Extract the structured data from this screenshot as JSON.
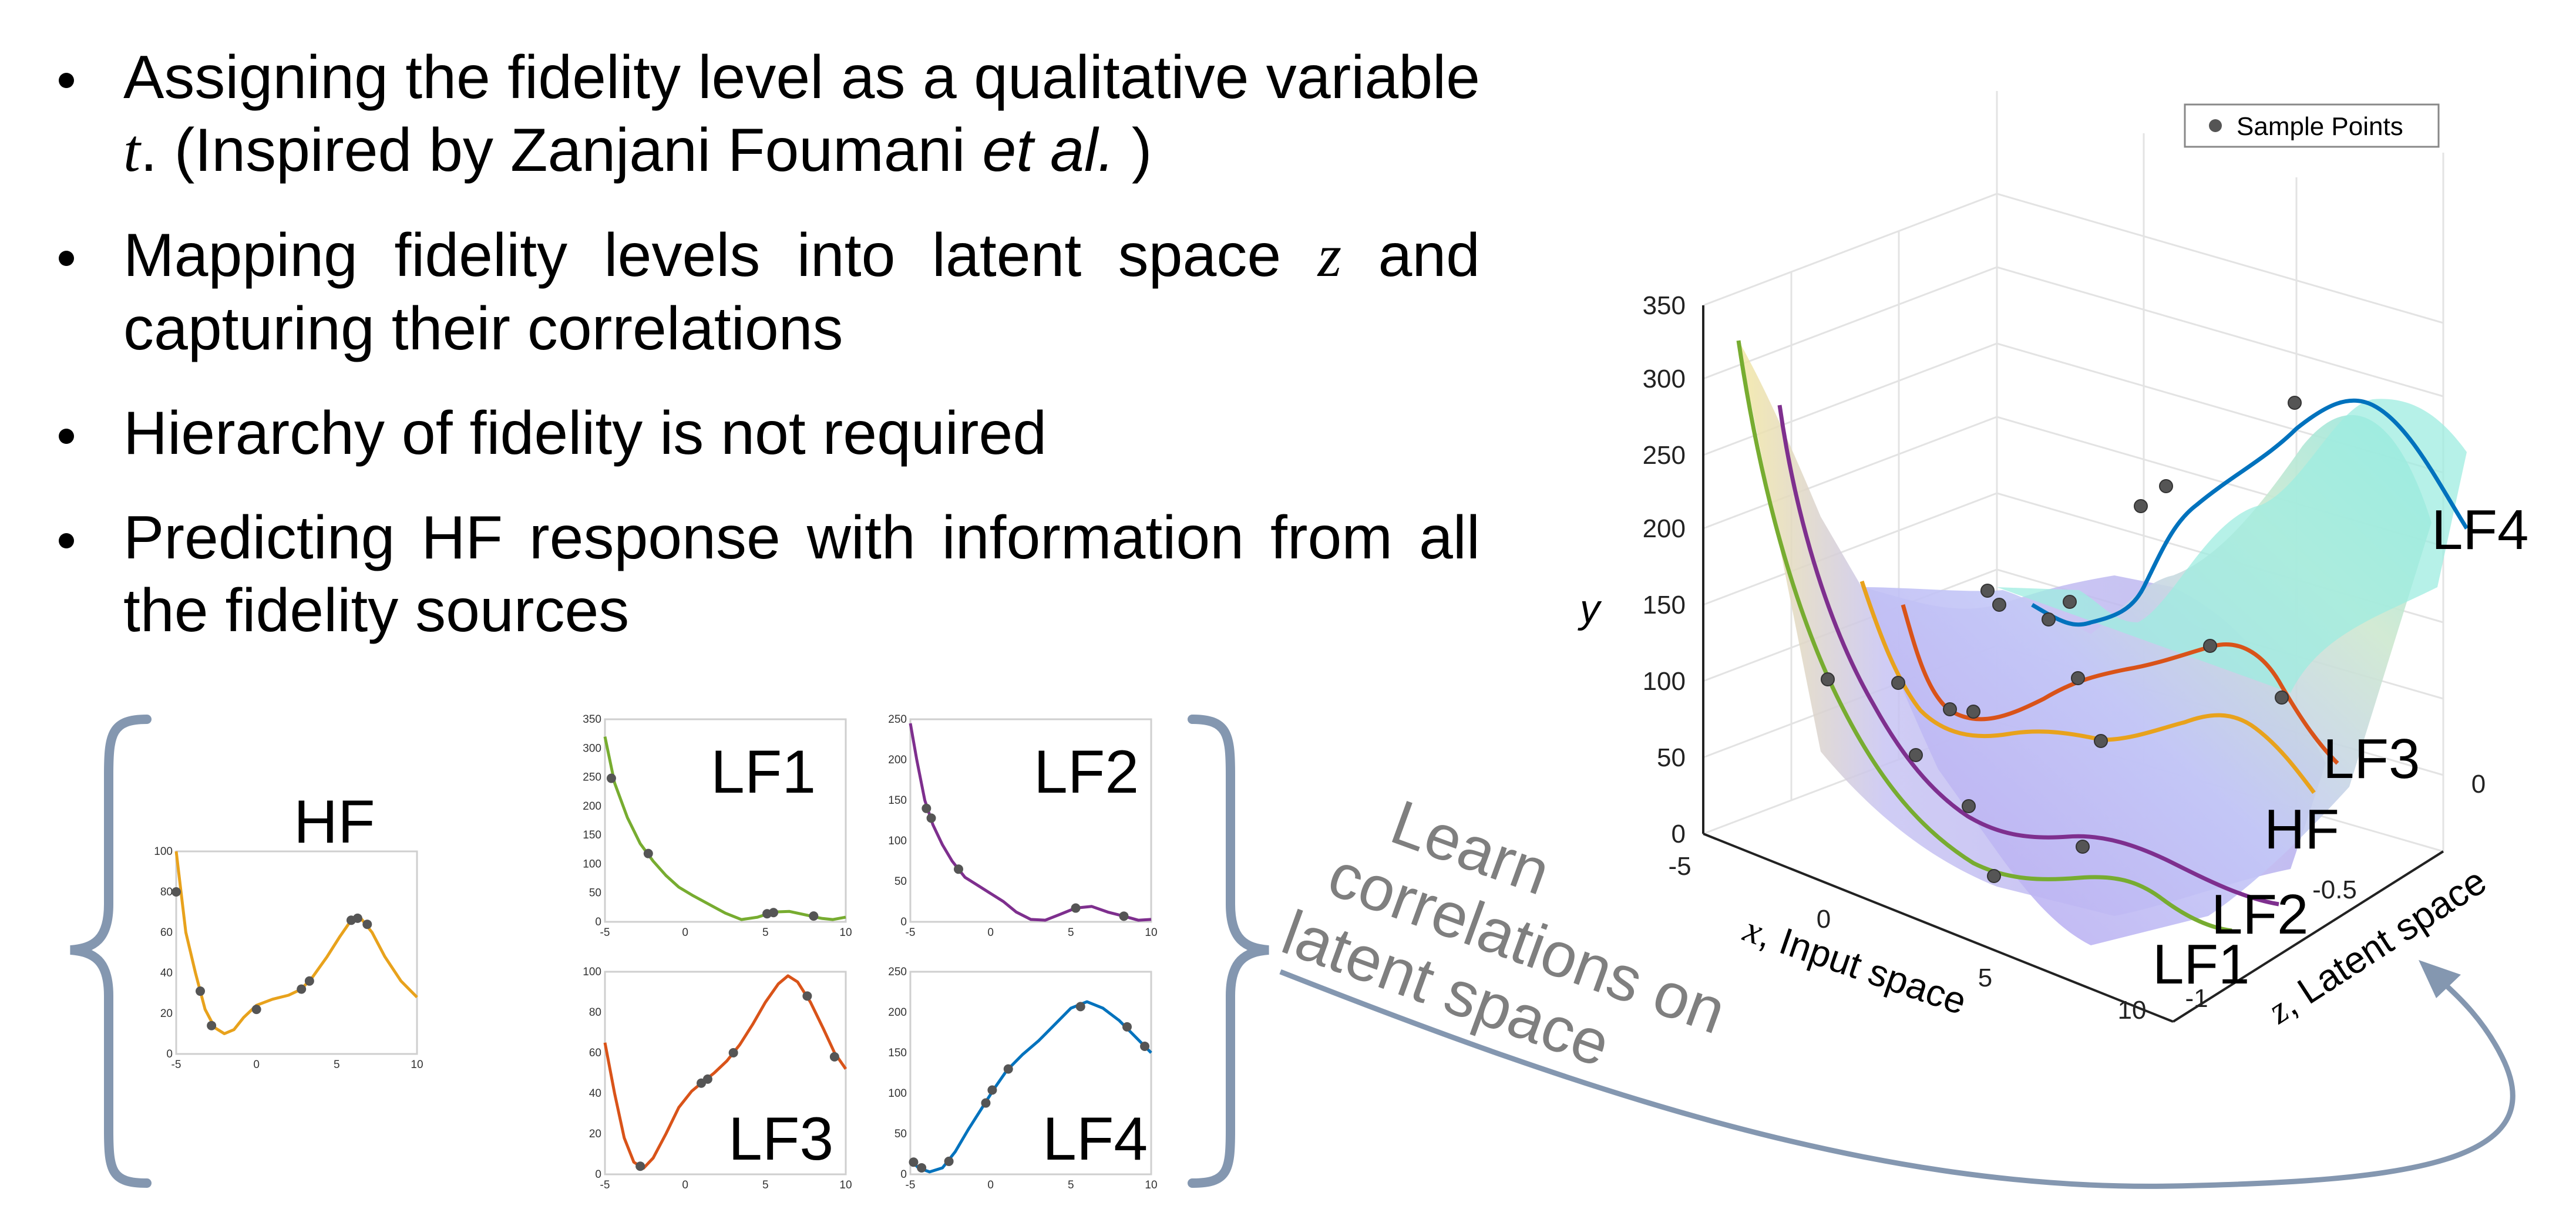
{
  "bullets": [
    {
      "text_before": "Assigning the fidelity level as a qualitative variable ",
      "math": "t",
      "text_after": ". (Inspired by Zanjani Foumani ",
      "italic": "et al.",
      "tail": " )"
    },
    {
      "text_before": "Mapping fidelity levels into latent space ",
      "math": "z",
      "text_after": " and capturing their correlations"
    },
    {
      "text_before": "Hierarchy of fidelity is not required"
    },
    {
      "text_before": "Predicting HF response with information from all the fidelity sources"
    }
  ],
  "arrow_text": [
    "Learn",
    "correlations on",
    "latent space"
  ],
  "colors": {
    "HF": "#e8a21c",
    "LF1": "#77ac30",
    "LF2": "#7e2f8e",
    "LF3": "#d95319",
    "LF4": "#0072bd",
    "points": "#555555",
    "brace": "#8497b0",
    "arrow_text": "#7f7f7f"
  },
  "chart_data": [
    {
      "type": "line",
      "title": "HF",
      "xlim": [
        -5,
        10
      ],
      "ylim": [
        0,
        100
      ],
      "xticks": [
        -5,
        0,
        5,
        10
      ],
      "yticks": [
        0,
        20,
        40,
        60,
        80,
        100
      ],
      "points": [
        [
          -5,
          80
        ],
        [
          -3.5,
          31
        ],
        [
          -2.8,
          14
        ],
        [
          0,
          22
        ],
        [
          2.8,
          32
        ],
        [
          3.3,
          36
        ],
        [
          5.9,
          66
        ],
        [
          6.3,
          67
        ],
        [
          6.9,
          64
        ]
      ],
      "curve": [
        [
          -5,
          100
        ],
        [
          -4.4,
          60
        ],
        [
          -3.8,
          40
        ],
        [
          -3.2,
          22
        ],
        [
          -2.6,
          13
        ],
        [
          -2,
          10
        ],
        [
          -1.4,
          12
        ],
        [
          -0.8,
          18
        ],
        [
          0,
          24
        ],
        [
          1,
          27
        ],
        [
          2,
          29
        ],
        [
          2.8,
          32
        ],
        [
          3.5,
          38
        ],
        [
          4.4,
          48
        ],
        [
          5.2,
          58
        ],
        [
          5.9,
          66
        ],
        [
          6.5,
          67
        ],
        [
          7.2,
          60
        ],
        [
          8,
          48
        ],
        [
          9,
          36
        ],
        [
          10,
          28
        ]
      ]
    },
    {
      "type": "line",
      "title": "LF1",
      "xlim": [
        -5,
        10
      ],
      "ylim": [
        0,
        350
      ],
      "xticks": [
        -5,
        0,
        5,
        10
      ],
      "yticks": [
        0,
        50,
        100,
        150,
        200,
        250,
        300,
        350
      ],
      "points": [
        [
          -4.6,
          248
        ],
        [
          -2.3,
          118
        ],
        [
          5.1,
          14
        ],
        [
          5.5,
          16
        ],
        [
          8,
          10
        ]
      ],
      "curve": [
        [
          -5,
          320
        ],
        [
          -4.4,
          240
        ],
        [
          -3.6,
          180
        ],
        [
          -2.8,
          135
        ],
        [
          -2,
          105
        ],
        [
          -1.2,
          80
        ],
        [
          -0.4,
          60
        ],
        [
          0.5,
          45
        ],
        [
          1.5,
          30
        ],
        [
          2.5,
          15
        ],
        [
          3.5,
          4
        ],
        [
          4.5,
          8
        ],
        [
          5.5,
          17
        ],
        [
          6.5,
          18
        ],
        [
          7.5,
          12
        ],
        [
          8.5,
          6
        ],
        [
          9.2,
          4
        ],
        [
          10,
          8
        ]
      ]
    },
    {
      "type": "line",
      "title": "LF2",
      "xlim": [
        -5,
        10
      ],
      "ylim": [
        0,
        250
      ],
      "xticks": [
        -5,
        0,
        5,
        10
      ],
      "yticks": [
        0,
        50,
        100,
        150,
        200,
        250
      ],
      "points": [
        [
          -4,
          140
        ],
        [
          -3.7,
          128
        ],
        [
          -2,
          65
        ],
        [
          5.3,
          17
        ],
        [
          8.3,
          7
        ]
      ],
      "curve": [
        [
          -5,
          245
        ],
        [
          -4.6,
          200
        ],
        [
          -4.1,
          150
        ],
        [
          -3.6,
          120
        ],
        [
          -3,
          95
        ],
        [
          -2.4,
          75
        ],
        [
          -1.6,
          55
        ],
        [
          -0.8,
          45
        ],
        [
          0,
          35
        ],
        [
          0.8,
          25
        ],
        [
          1.6,
          12
        ],
        [
          2.5,
          3
        ],
        [
          3.4,
          2
        ],
        [
          4.3,
          9
        ],
        [
          5.3,
          17
        ],
        [
          6.3,
          19
        ],
        [
          7.3,
          12
        ],
        [
          8.3,
          7
        ],
        [
          9.2,
          2
        ],
        [
          10,
          3
        ]
      ]
    },
    {
      "type": "line",
      "title": "LF3",
      "xlim": [
        -5,
        10
      ],
      "ylim": [
        0,
        100
      ],
      "xticks": [
        -5,
        0,
        5,
        10
      ],
      "yticks": [
        0,
        20,
        40,
        60,
        80,
        100
      ],
      "points": [
        [
          -2.8,
          4
        ],
        [
          1,
          45
        ],
        [
          1.4,
          47
        ],
        [
          3,
          60
        ],
        [
          7.6,
          88
        ],
        [
          9.3,
          58
        ]
      ],
      "curve": [
        [
          -5,
          65
        ],
        [
          -4.4,
          40
        ],
        [
          -3.8,
          18
        ],
        [
          -3.2,
          6
        ],
        [
          -2.6,
          3
        ],
        [
          -2,
          8
        ],
        [
          -1.2,
          20
        ],
        [
          -0.4,
          33
        ],
        [
          0.4,
          41
        ],
        [
          1,
          45
        ],
        [
          1.8,
          50
        ],
        [
          2.6,
          56
        ],
        [
          3.4,
          64
        ],
        [
          4.2,
          74
        ],
        [
          5,
          85
        ],
        [
          5.8,
          94
        ],
        [
          6.4,
          98
        ],
        [
          7,
          95
        ],
        [
          7.8,
          85
        ],
        [
          8.6,
          72
        ],
        [
          9.3,
          60
        ],
        [
          10,
          52
        ]
      ]
    },
    {
      "type": "line",
      "title": "LF4",
      "xlim": [
        -5,
        10
      ],
      "ylim": [
        0,
        250
      ],
      "xticks": [
        -5,
        0,
        5,
        10
      ],
      "yticks": [
        0,
        50,
        100,
        150,
        200,
        250
      ],
      "points": [
        [
          -4.8,
          15
        ],
        [
          -4.3,
          8
        ],
        [
          -2.6,
          16
        ],
        [
          -0.3,
          88
        ],
        [
          0.1,
          104
        ],
        [
          1.1,
          130
        ],
        [
          5.6,
          207
        ],
        [
          8.5,
          182
        ],
        [
          9.6,
          158
        ]
      ],
      "curve": [
        [
          -5,
          18
        ],
        [
          -4.5,
          8
        ],
        [
          -3.8,
          3
        ],
        [
          -3,
          8
        ],
        [
          -2.2,
          28
        ],
        [
          -1.4,
          55
        ],
        [
          -0.6,
          80
        ],
        [
          0.2,
          105
        ],
        [
          1,
          128
        ],
        [
          2,
          148
        ],
        [
          3,
          165
        ],
        [
          4,
          185
        ],
        [
          5,
          205
        ],
        [
          6,
          213
        ],
        [
          7,
          205
        ],
        [
          8,
          190
        ],
        [
          9,
          170
        ],
        [
          10,
          150
        ]
      ]
    },
    {
      "type": "surface",
      "legend": "Sample Points",
      "xlabel_math": "x",
      "xlabel": ", Input space",
      "ylabel_math": "y",
      "zlabel_math": "z",
      "zlabel": ", Latent space",
      "xticks": [
        -5,
        0,
        5,
        10
      ],
      "yticks": [
        0,
        50,
        100,
        150,
        200,
        250,
        300,
        350
      ],
      "zticks": [
        "-1",
        "-0.5",
        "0"
      ],
      "curve_labels": [
        "LF4",
        "LF3",
        "HF",
        "LF2",
        "LF1"
      ]
    }
  ]
}
